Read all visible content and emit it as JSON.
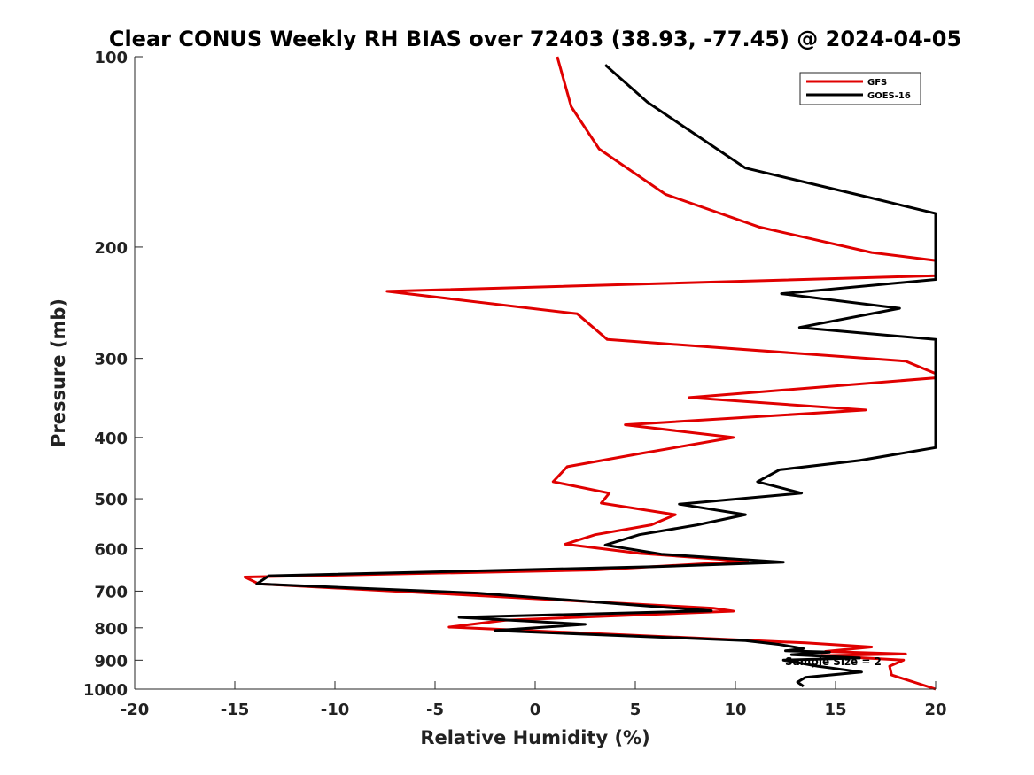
{
  "chart_data": {
    "type": "line",
    "title": "Clear CONUS Weekly RH BIAS over 72403 (38.93, -77.45) @ 2024-04-05",
    "xlabel": "Relative Humidity (%)",
    "ylabel": "Pressure (mb)",
    "xlim": [
      -20,
      20
    ],
    "ylim": [
      100,
      1000
    ],
    "y_scale": "log",
    "y_reversed": true,
    "x_ticks": [
      "-20",
      "-15",
      "-10",
      "-5",
      "0",
      "5",
      "10",
      "15",
      "20"
    ],
    "y_ticks": [
      "100",
      "200",
      "300",
      "400",
      "500",
      "600",
      "700",
      "800",
      "900",
      "1000"
    ],
    "grid": false,
    "legend_position": "top-right",
    "annotation": "Sample Size = 2",
    "series": [
      {
        "name": "GFS",
        "color": "#e00000",
        "points": [
          [
            1.1,
            100
          ],
          [
            1.8,
            120
          ],
          [
            3.2,
            140
          ],
          [
            6.5,
            165
          ],
          [
            11.2,
            186
          ],
          [
            16.8,
            204
          ],
          [
            20.0,
            210
          ],
          [
            20.0,
            222
          ],
          [
            -7.4,
            235
          ],
          [
            2.1,
            255
          ],
          [
            3.6,
            280
          ],
          [
            18.5,
            303
          ],
          [
            20.0,
            317
          ],
          [
            20.0,
            322
          ],
          [
            7.7,
            346
          ],
          [
            16.5,
            362
          ],
          [
            4.5,
            382
          ],
          [
            9.9,
            400
          ],
          [
            5.3,
            424
          ],
          [
            1.6,
            445
          ],
          [
            0.9,
            470
          ],
          [
            3.7,
            490
          ],
          [
            3.3,
            508
          ],
          [
            7.0,
            530
          ],
          [
            5.8,
            550
          ],
          [
            3.0,
            570
          ],
          [
            1.5,
            590
          ],
          [
            5.2,
            610
          ],
          [
            10.6,
            628
          ],
          [
            3.0,
            648
          ],
          [
            -14.5,
            665
          ],
          [
            -13.8,
            682
          ],
          [
            -5.2,
            705
          ],
          [
            8.9,
            745
          ],
          [
            9.9,
            753
          ],
          [
            -1.5,
            778
          ],
          [
            -4.3,
            798
          ],
          [
            13.5,
            845
          ],
          [
            16.8,
            858
          ],
          [
            14.5,
            872
          ],
          [
            18.5,
            880
          ],
          [
            14.3,
            885
          ],
          [
            18.4,
            900
          ],
          [
            17.7,
            920
          ],
          [
            17.8,
            950
          ],
          [
            20.0,
            1000
          ]
        ]
      },
      {
        "name": "GOES-16",
        "color": "#000000",
        "points": [
          [
            3.5,
            103
          ],
          [
            5.6,
            118
          ],
          [
            10.5,
            150
          ],
          [
            16.7,
            167
          ],
          [
            20.0,
            177
          ],
          [
            20.0,
            225
          ],
          [
            12.3,
            237
          ],
          [
            18.2,
            250
          ],
          [
            13.2,
            268
          ],
          [
            20.0,
            280
          ],
          [
            20.0,
            415
          ],
          [
            16.2,
            435
          ],
          [
            12.2,
            450
          ],
          [
            11.1,
            470
          ],
          [
            13.3,
            490
          ],
          [
            7.2,
            510
          ],
          [
            10.5,
            530
          ],
          [
            8.1,
            550
          ],
          [
            5.2,
            570
          ],
          [
            3.5,
            592
          ],
          [
            6.3,
            612
          ],
          [
            12.4,
            630
          ],
          [
            6.2,
            640
          ],
          [
            -13.3,
            662
          ],
          [
            -13.9,
            682
          ],
          [
            -2.9,
            705
          ],
          [
            8.8,
            752
          ],
          [
            -3.8,
            770
          ],
          [
            2.5,
            790
          ],
          [
            -2.0,
            808
          ],
          [
            10.5,
            838
          ],
          [
            12.2,
            850
          ],
          [
            13.4,
            863
          ],
          [
            12.5,
            870
          ],
          [
            14.7,
            874
          ],
          [
            12.8,
            882
          ],
          [
            16.2,
            893
          ],
          [
            12.4,
            900
          ],
          [
            14.1,
            920
          ],
          [
            16.3,
            940
          ],
          [
            13.5,
            958
          ],
          [
            13.1,
            975
          ],
          [
            13.4,
            990
          ]
        ]
      }
    ]
  }
}
